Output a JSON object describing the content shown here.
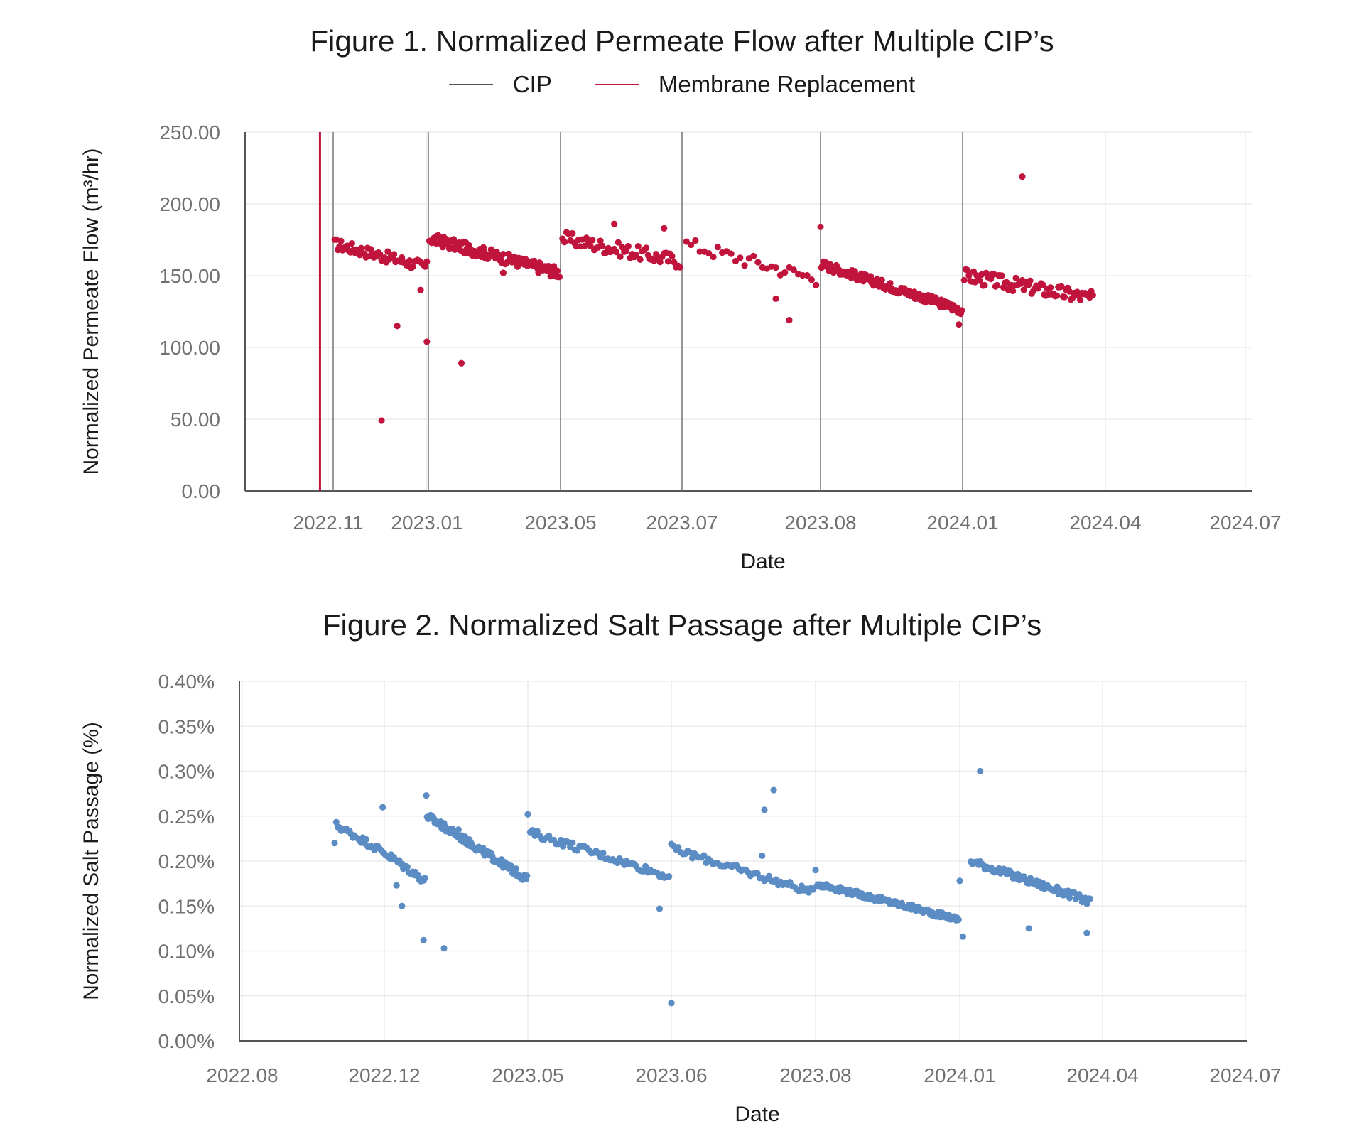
{
  "chart_data": [
    {
      "type": "scatter",
      "title": "Figure 1. Normalized Permeate Flow after Multiple CIP’s",
      "xlabel": "Date",
      "ylabel": "Normalized Permeate Flow (m³/hr)",
      "x_tick_labels": [
        "2022.11",
        "2023.01",
        "2023.05",
        "2023.07",
        "2023.08",
        "2024.01",
        "2024.04",
        "2024.07"
      ],
      "y_tick_labels": [
        "0.00",
        "50.00",
        "100.00",
        "150.00",
        "200.00",
        "250.00"
      ],
      "ylim": [
        0,
        250
      ],
      "grid": true,
      "legend_position": "top-center",
      "legend": [
        {
          "name": "CIP",
          "color": "#555555"
        },
        {
          "name": "Membrane Replacement",
          "color": "#c0143c"
        }
      ],
      "point_color": "#c0143c",
      "vlines": [
        {
          "series": "Membrane Replacement",
          "x": "2022-10-23"
        },
        {
          "series": "CIP",
          "x": "2022-11-01"
        },
        {
          "series": "CIP",
          "x": "2023-01-01"
        },
        {
          "series": "CIP",
          "x": "2023-05-01"
        },
        {
          "series": "CIP",
          "x": "2023-07-01"
        },
        {
          "series": "CIP",
          "x": "2023-08-01"
        },
        {
          "series": "CIP",
          "x": "2024-01-01"
        }
      ],
      "segments": [
        {
          "start": "2022-11-02",
          "end": "2022-12-31",
          "y_start": 172,
          "y_end": 156,
          "spread": 4,
          "outliers": [
            [
              "2022-12-02",
              49
            ],
            [
              "2022-12-12",
              115
            ],
            [
              "2022-12-27",
              140
            ],
            [
              "2022-12-31",
              104
            ]
          ]
        },
        {
          "start": "2023-01-02",
          "end": "2023-04-30",
          "y_start": 176,
          "y_end": 152,
          "spread": 4,
          "outliers": [
            [
              "2023-01-31",
              89
            ],
            [
              "2023-03-10",
              152
            ]
          ]
        },
        {
          "start": "2023-05-02",
          "end": "2023-06-30",
          "y_start": 176,
          "y_end": 160,
          "spread": 5,
          "outliers": [
            [
              "2023-05-28",
              186
            ],
            [
              "2023-06-22",
              183
            ]
          ]
        },
        {
          "start": "2023-07-02",
          "end": "2023-07-31",
          "y_start": 172,
          "y_end": 148,
          "spread": 5,
          "outliers": [
            [
              "2023-07-22",
              134
            ],
            [
              "2023-07-25",
              119
            ],
            [
              "2023-08-01",
              184
            ]
          ]
        },
        {
          "start": "2023-08-02",
          "end": "2023-12-31",
          "y_start": 158,
          "y_end": 126,
          "spread": 3,
          "outliers": [
            [
              "2023-12-28",
              116
            ]
          ]
        },
        {
          "start": "2024-01-02",
          "end": "2024-03-24",
          "y_start": 150,
          "y_end": 134,
          "spread": 5,
          "outliers": [
            [
              "2024-02-08",
              219
            ]
          ]
        }
      ]
    },
    {
      "type": "scatter",
      "title": "Figure 2. Normalized Salt Passage after Multiple CIP’s",
      "xlabel": "Date",
      "ylabel": "Normalized Salt Passage (%)",
      "x_tick_labels": [
        "2022.08",
        "2022.12",
        "2023.05",
        "2023.06",
        "2023.08",
        "2024.01",
        "2024.04",
        "2024.07"
      ],
      "y_tick_labels": [
        "0.00%",
        "0.05%",
        "0.10%",
        "0.15%",
        "0.20%",
        "0.25%",
        "0.30%",
        "0.35%",
        "0.40%"
      ],
      "ylim": [
        0,
        0.4
      ],
      "grid": true,
      "point_color": "#5b8cc4",
      "segments": [
        {
          "start": "2022-11-02",
          "end": "2022-12-31",
          "y_start": 0.24,
          "y_end": 0.178,
          "spread": 0.004,
          "outliers": [
            [
              "2022-11-01",
              0.22
            ],
            [
              "2022-11-30",
              0.26
            ],
            [
              "2022-12-10",
              0.173
            ],
            [
              "2022-12-14",
              0.15
            ],
            [
              "2022-12-30",
              0.112
            ]
          ]
        },
        {
          "start": "2023-01-02",
          "end": "2023-04-30",
          "y_start": 0.25,
          "y_end": 0.18,
          "spread": 0.004,
          "outliers": [
            [
              "2023-01-01",
              0.273
            ],
            [
              "2023-01-22",
              0.103
            ],
            [
              "2023-02-08",
              0.235
            ]
          ]
        },
        {
          "start": "2023-05-02",
          "end": "2023-06-30",
          "y_start": 0.232,
          "y_end": 0.183,
          "spread": 0.004,
          "outliers": [
            [
              "2023-05-01",
              0.252
            ],
            [
              "2023-06-26",
              0.147
            ],
            [
              "2023-07-01",
              0.042
            ]
          ]
        },
        {
          "start": "2023-07-02",
          "end": "2023-08-31",
          "y_start": 0.213,
          "y_end": 0.165,
          "spread": 0.004,
          "outliers": [
            [
              "2023-07-01",
              0.219
            ],
            [
              "2023-08-10",
              0.257
            ],
            [
              "2023-08-14",
              0.279
            ],
            [
              "2023-08-09",
              0.206
            ]
          ]
        },
        {
          "start": "2023-09-02",
          "end": "2023-12-31",
          "y_start": 0.175,
          "y_end": 0.135,
          "spread": 0.003,
          "outliers": [
            [
              "2023-09-01",
              0.19
            ]
          ]
        },
        {
          "start": "2024-01-08",
          "end": "2024-03-24",
          "y_start": 0.2,
          "y_end": 0.155,
          "spread": 0.004,
          "outliers": [
            [
              "2024-01-01",
              0.178
            ],
            [
              "2024-01-03",
              0.116
            ],
            [
              "2024-01-14",
              0.3
            ],
            [
              "2024-02-14",
              0.125
            ],
            [
              "2024-03-22",
              0.12
            ]
          ]
        }
      ]
    }
  ]
}
